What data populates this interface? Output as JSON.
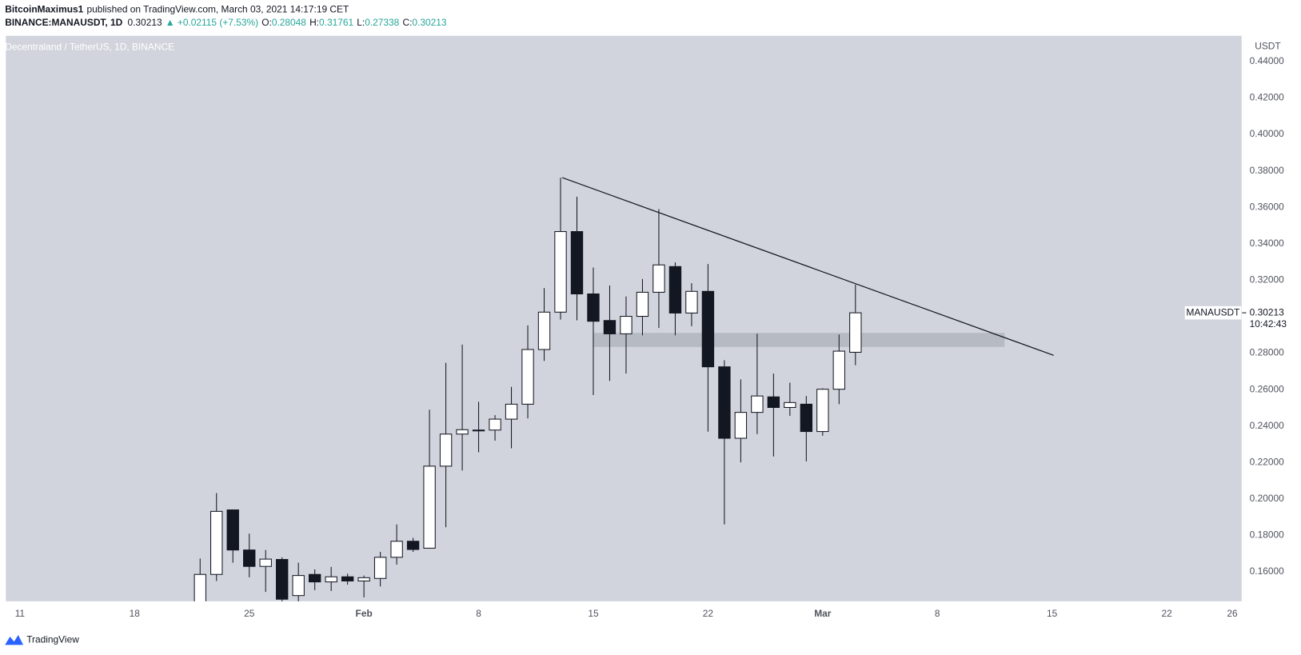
{
  "header": {
    "author": "BitcoinMaximus1",
    "published": "published on TradingView.com, March 03, 2021 14:17:19 CET",
    "symbol": "BINANCE:MANAUSDT, 1D",
    "last": "0.30213",
    "change": "▲ +0.02115 (+7.53%)",
    "ohlc": [
      {
        "label": "O:",
        "value": "0.28048"
      },
      {
        "label": "H:",
        "value": "0.31761"
      },
      {
        "label": "L:",
        "value": "0.27338"
      },
      {
        "label": "C:",
        "value": "0.30213"
      }
    ]
  },
  "chart_data": {
    "type": "candlestick",
    "title": "Decentraland / TetherUS, 1D, BINANCE",
    "y_unit": "USDT",
    "x": [
      11,
      12,
      13,
      14,
      15,
      16,
      17,
      18,
      19,
      20,
      21,
      22,
      23,
      24,
      25,
      26,
      27,
      28,
      29,
      30,
      31,
      32,
      33,
      34,
      35,
      36,
      37,
      38,
      39,
      40,
      41,
      42,
      43,
      44,
      45,
      46,
      47,
      48,
      49,
      50,
      51
    ],
    "open": [
      0.143,
      0.1586,
      0.194,
      0.172,
      0.163,
      0.1668,
      0.147,
      0.1586,
      0.1545,
      0.1573,
      0.155,
      0.1564,
      0.168,
      0.1768,
      0.173,
      0.218,
      0.2356,
      0.2375,
      0.2378,
      0.2438,
      0.252,
      0.282,
      0.3025,
      0.3467,
      0.3125,
      0.2979,
      0.2906,
      0.3002,
      0.3134,
      0.3275,
      0.302,
      0.3139,
      0.2725,
      0.2333,
      0.2475,
      0.256,
      0.2502,
      0.252,
      0.237,
      0.2602,
      0.28048
    ],
    "high": [
      0.1673,
      0.2032,
      0.194,
      0.181,
      0.172,
      0.168,
      0.165,
      0.1614,
      0.1627,
      0.159,
      0.158,
      0.171,
      0.186,
      0.1787,
      0.249,
      0.2747,
      0.2847,
      0.2533,
      0.246,
      0.2615,
      0.2952,
      0.3157,
      0.3763,
      0.3658,
      0.327,
      0.3171,
      0.3111,
      0.3207,
      0.359,
      0.3298,
      0.3184,
      0.3289,
      0.2761,
      0.2656,
      0.2907,
      0.2688,
      0.2638,
      0.2565,
      0.2607,
      0.2902,
      0.31761
    ],
    "low": [
      0.14,
      0.155,
      0.165,
      0.157,
      0.149,
      0.14,
      0.142,
      0.15,
      0.1495,
      0.153,
      0.146,
      0.152,
      0.164,
      0.171,
      0.173,
      0.1845,
      0.2156,
      0.2256,
      0.232,
      0.2278,
      0.2442,
      0.2757,
      0.2984,
      0.298,
      0.257,
      0.2648,
      0.2688,
      0.2898,
      0.2938,
      0.2898,
      0.2948,
      0.2369,
      0.186,
      0.2201,
      0.2356,
      0.2233,
      0.2456,
      0.2206,
      0.2347,
      0.252,
      0.27338
    ],
    "close": [
      0.1586,
      0.1932,
      0.172,
      0.163,
      0.167,
      0.145,
      0.158,
      0.1545,
      0.1573,
      0.155,
      0.1568,
      0.168,
      0.1768,
      0.1723,
      0.218,
      0.2356,
      0.238,
      0.2378,
      0.2438,
      0.252,
      0.282,
      0.3025,
      0.3467,
      0.3125,
      0.2975,
      0.2906,
      0.3002,
      0.3134,
      0.3284,
      0.302,
      0.3139,
      0.2725,
      0.2333,
      0.2475,
      0.2565,
      0.2502,
      0.2529,
      0.237,
      0.2602,
      0.2811,
      0.30213
    ],
    "up_color": "#ffffff",
    "down_color": "#131722",
    "border_color": "#131722",
    "background": "#d1d4dc",
    "xlim": [
      -0.86,
      74.6
    ],
    "xticks": [
      {
        "value": 0,
        "label": "11"
      },
      {
        "value": 7,
        "label": "18"
      },
      {
        "value": 14,
        "label": "25"
      },
      {
        "value": 21,
        "label": "Feb"
      },
      {
        "value": 28,
        "label": "8"
      },
      {
        "value": 35,
        "label": "15"
      },
      {
        "value": 42,
        "label": "22"
      },
      {
        "value": 49,
        "label": "Mar"
      },
      {
        "value": 56,
        "label": "8"
      },
      {
        "value": 63,
        "label": "15"
      },
      {
        "value": 70,
        "label": "22"
      },
      {
        "value": 74,
        "label": "26"
      }
    ],
    "ylim": [
      0.1436,
      0.4541
    ],
    "yticks": [
      {
        "value": 0.16,
        "label": "0.16000"
      },
      {
        "value": 0.18,
        "label": "0.18000"
      },
      {
        "value": 0.2,
        "label": "0.20000"
      },
      {
        "value": 0.22,
        "label": "0.22000"
      },
      {
        "value": 0.24,
        "label": "0.24000"
      },
      {
        "value": 0.26,
        "label": "0.26000"
      },
      {
        "value": 0.28,
        "label": "0.28000"
      },
      {
        "value": 0.3,
        "label": "0.30000"
      },
      {
        "value": 0.32,
        "label": "0.32000"
      },
      {
        "value": 0.34,
        "label": "0.34000"
      },
      {
        "value": 0.36,
        "label": "0.36000"
      },
      {
        "value": 0.38,
        "label": "0.38000"
      },
      {
        "value": 0.4,
        "label": "0.40000"
      },
      {
        "value": 0.42,
        "label": "0.42000"
      },
      {
        "value": 0.44,
        "label": "0.44000"
      }
    ],
    "trendline": {
      "x": [
        33.1,
        63.1
      ],
      "y": [
        0.3763,
        0.2788
      ],
      "color": "#131722"
    },
    "zone": {
      "x": [
        35,
        60.1
      ],
      "y": [
        0.2834,
        0.2911
      ],
      "color": "#b2b5be"
    },
    "price_label": {
      "symbol": "MANAUSDT",
      "countdown": "10:42:43"
    }
  },
  "footer": {
    "brand": "TradingView"
  }
}
